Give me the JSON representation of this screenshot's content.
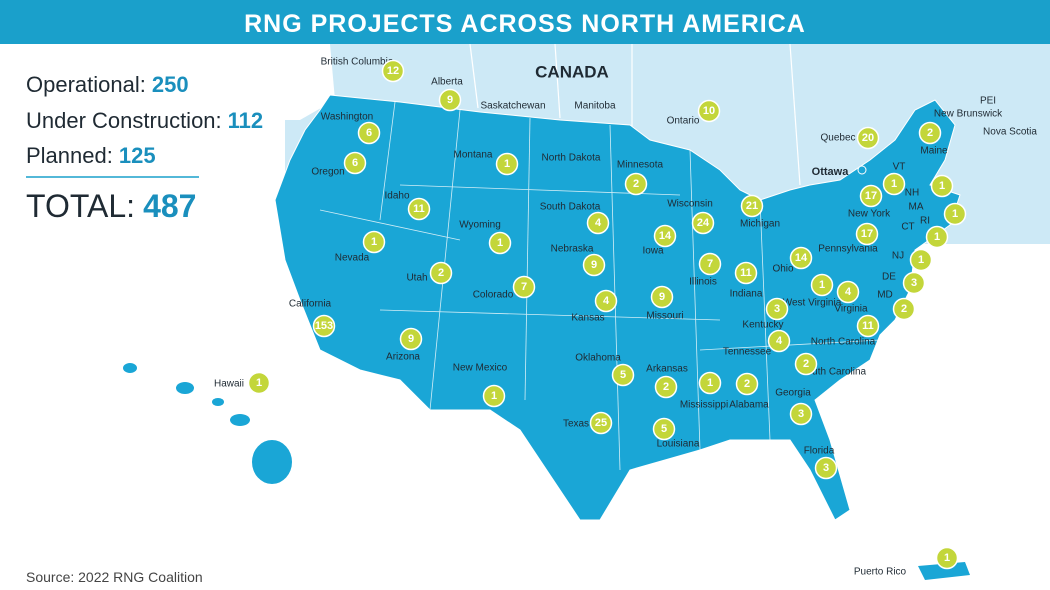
{
  "header": {
    "title": "RNG PROJECTS ACROSS NORTH AMERICA"
  },
  "summary": [
    {
      "label": "Operational:",
      "value": 250
    },
    {
      "label": "Under Construction:",
      "value": 112
    },
    {
      "label": "Planned:",
      "value": 125
    }
  ],
  "total": {
    "label": "TOTAL:",
    "value": 487
  },
  "source": "Source: 2022 RNG Coalition",
  "country_label": "CANADA",
  "capital_label": "Ottawa",
  "place_labels": [
    "Saskatchewan",
    "Manitoba",
    "PEI",
    "Nova Scotia",
    "North Dakota",
    "MA",
    "New Brunswick"
  ],
  "regions": [
    {
      "name": "British Columbia",
      "count": 12
    },
    {
      "name": "Alberta",
      "count": 9
    },
    {
      "name": "Ontario",
      "count": 10
    },
    {
      "name": "Quebec",
      "count": 20
    },
    {
      "name": "Maine",
      "count": 2
    },
    {
      "name": "Washington",
      "count": 6
    },
    {
      "name": "Oregon",
      "count": 6
    },
    {
      "name": "Idaho",
      "count": 11
    },
    {
      "name": "Montana",
      "count": 1
    },
    {
      "name": "Minnesota",
      "count": 2
    },
    {
      "name": "Wisconsin",
      "count": 24
    },
    {
      "name": "Michigan",
      "count": 21
    },
    {
      "name": "South Dakota",
      "count": 4
    },
    {
      "name": "Wyoming",
      "count": 1
    },
    {
      "name": "Nevada",
      "count": 1
    },
    {
      "name": "Utah",
      "count": 2
    },
    {
      "name": "Colorado",
      "count": 7
    },
    {
      "name": "Nebraska",
      "count": 9
    },
    {
      "name": "Iowa",
      "count": 14
    },
    {
      "name": "Illinois",
      "count": 7
    },
    {
      "name": "Indiana",
      "count": 11
    },
    {
      "name": "Ohio",
      "count": 14
    },
    {
      "name": "Pennsylvania",
      "count": 17
    },
    {
      "name": "New York",
      "count": 17
    },
    {
      "name": "VT",
      "count": 1
    },
    {
      "name": "NH",
      "count": 1
    },
    {
      "name": "RI",
      "count": 1
    },
    {
      "name": "CT",
      "count": 1
    },
    {
      "name": "NJ",
      "count": 1
    },
    {
      "name": "DE",
      "count": 3
    },
    {
      "name": "MD",
      "count": 2
    },
    {
      "name": "West Virginia",
      "count": 1
    },
    {
      "name": "Virginia",
      "count": 4
    },
    {
      "name": "Kentucky",
      "count": 3
    },
    {
      "name": "Tennessee",
      "count": 4
    },
    {
      "name": "North Carolina",
      "count": 11
    },
    {
      "name": "South Carolina",
      "count": 2
    },
    {
      "name": "Georgia",
      "count": 3
    },
    {
      "name": "Alabama",
      "count": 2
    },
    {
      "name": "Mississippi",
      "count": 1
    },
    {
      "name": "Louisiana",
      "count": 5
    },
    {
      "name": "Arkansas",
      "count": 2
    },
    {
      "name": "Missouri",
      "count": 9
    },
    {
      "name": "Kansas",
      "count": 4
    },
    {
      "name": "Oklahoma",
      "count": 5
    },
    {
      "name": "Texas",
      "count": 25
    },
    {
      "name": "New Mexico",
      "count": 1
    },
    {
      "name": "Arizona",
      "count": 9
    },
    {
      "name": "California",
      "count": 153
    },
    {
      "name": "Hawaii",
      "count": 1
    },
    {
      "name": "Florida",
      "count": 3
    },
    {
      "name": "Puerto Rico",
      "count": 1
    }
  ]
}
